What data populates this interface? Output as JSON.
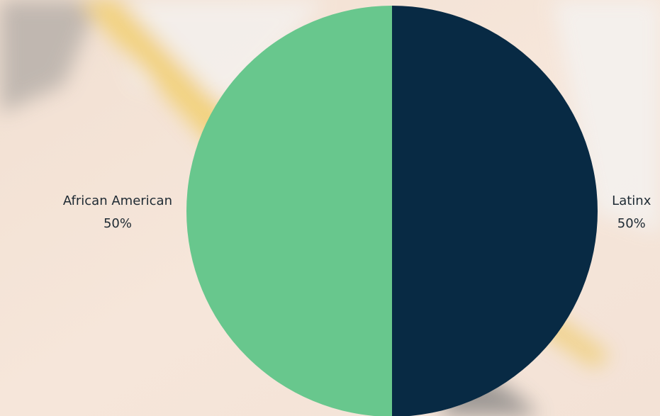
{
  "chart_data": {
    "type": "pie",
    "categories": [
      "Latinx",
      "African American"
    ],
    "values": [
      50,
      50
    ],
    "value_labels": [
      "50%",
      "50%"
    ],
    "colors": [
      "#082a44",
      "#68c78d"
    ],
    "start_angle": "top",
    "direction": "clockwise"
  }
}
